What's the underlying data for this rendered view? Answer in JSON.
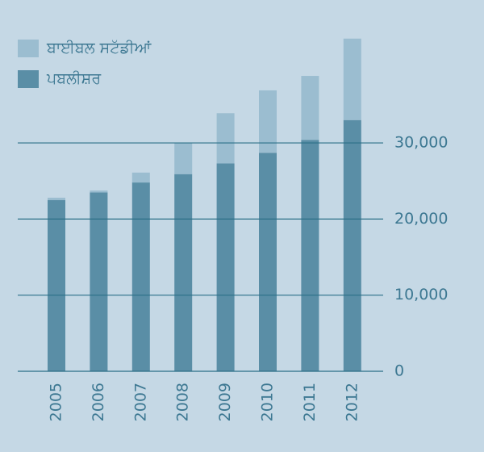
{
  "chart_data": {
    "type": "stacked-bar",
    "categories": [
      "2005",
      "2006",
      "2007",
      "2008",
      "2009",
      "2010",
      "2011",
      "2012"
    ],
    "series": [
      {
        "name": "ਪਬਲੀਸ਼ਰ",
        "color": "#5a8ea6",
        "values": [
          22500,
          23500,
          24800,
          25900,
          27300,
          28700,
          30400,
          33000
        ]
      },
      {
        "name": "ਬਾਈਬਲ ਸਟੱਡੀਆਂ",
        "color": "#9bbdd0",
        "values": [
          300,
          250,
          1300,
          4100,
          6600,
          8200,
          8400,
          10700
        ]
      }
    ],
    "ylim": [
      0,
      44000
    ],
    "yticks": [
      0,
      {
        "value": 10000,
        "label": "10,000"
      },
      {
        "value": 20000,
        "label": "20,000"
      },
      {
        "value": 30000,
        "label": "30,000"
      }
    ],
    "grid": true,
    "grid_color": "#2b6f87",
    "legend": "top-left"
  }
}
